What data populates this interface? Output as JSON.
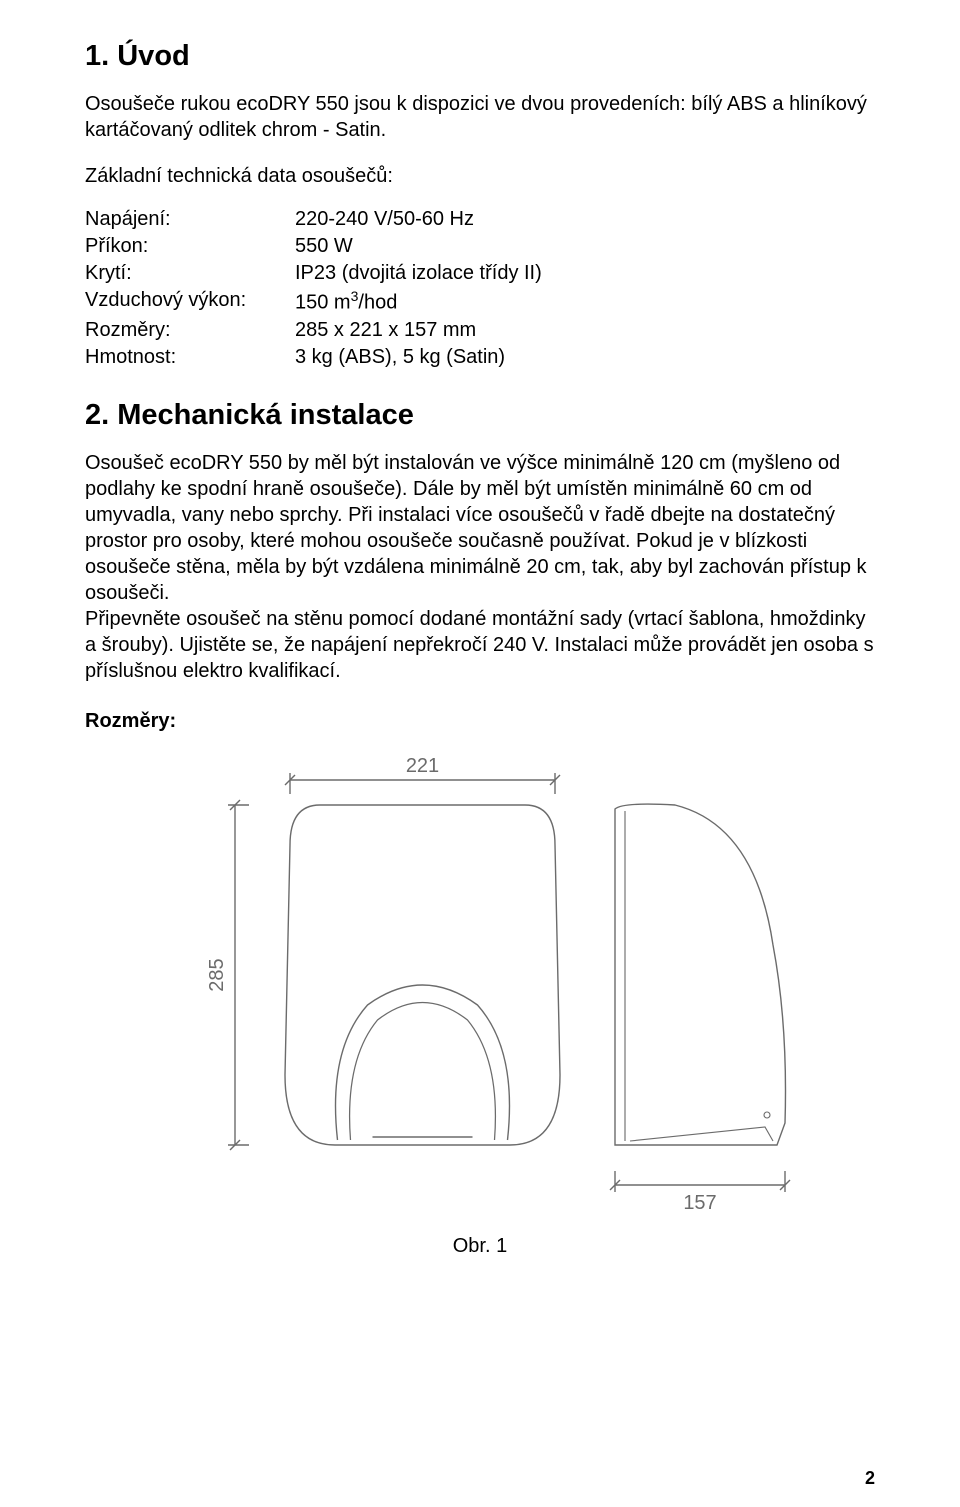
{
  "section1": {
    "heading": "1. Úvod",
    "intro": "Osoušeče rukou ecoDRY 550 jsou k dispozici ve dvou provedeních: bílý ABS a hliníkový kartáčovaný odlitek chrom - Satin.",
    "subhead": "Základní technická data osoušečů:",
    "specs": [
      {
        "label": "Napájení:",
        "value": "220-240 V/50-60 Hz"
      },
      {
        "label": "Příkon:",
        "value": "550 W"
      },
      {
        "label": "Krytí:",
        "value": "IP23 (dvojitá izolace třídy II)"
      },
      {
        "label": "Vzduchový výkon:",
        "value_html": "150 m<sup>3</sup>/hod"
      },
      {
        "label": "Rozměry:",
        "value": "285 x 221 x 157 mm"
      },
      {
        "label": "Hmotnost:",
        "value": "3 kg (ABS), 5 kg (Satin)"
      }
    ]
  },
  "section2": {
    "heading": "2. Mechanická instalace",
    "body": "Osoušeč ecoDRY 550 by měl být instalován ve výšce minimálně 120 cm (myšleno od podlahy ke spodní hraně osoušeče). Dále by měl být umístěn minimálně 60 cm od umyvadla, vany nebo sprchy. Při instalaci více osoušečů v řadě dbejte na dostatečný prostor pro osoby, které mohou osoušeče současně používat. Pokud je v blízkosti osoušeče stěna, měla by být vzdálena minimálně 20 cm, tak, aby byl zachován přístup k osoušeči.\nPřipevněte osoušeč na stěnu pomocí dodané montážní sady (vrtací šablona, hmoždinky a šrouby). Ujistěte se, že napájení nepřekročí 240 V. Instalaci může provádět jen osoba s příslušnou elektro kvalifikací.",
    "dims_label": "Rozměry:"
  },
  "diagram": {
    "width_label": "221",
    "height_label": "285",
    "depth_label": "157",
    "stroke": "#6b6b6b",
    "text_color": "#6b6b6b",
    "stroke_width": 1.4,
    "label_fontsize": 20
  },
  "figure_caption": "Obr. 1",
  "page_number": "2"
}
